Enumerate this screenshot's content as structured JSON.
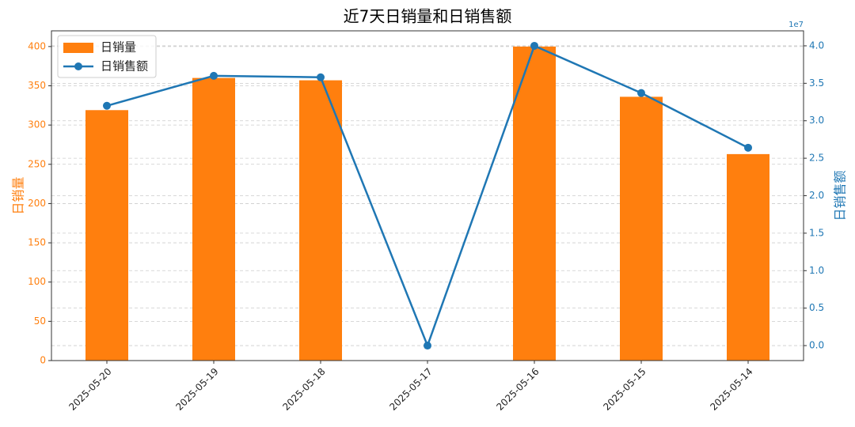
{
  "chart_data": {
    "type": "bar",
    "title": "近7天日销量和日销售额",
    "categories": [
      "2025-05-20",
      "2025-05-19",
      "2025-05-18",
      "2025-05-17",
      "2025-05-16",
      "2025-05-15",
      "2025-05-14"
    ],
    "series": [
      {
        "name": "日销量",
        "type": "bar",
        "color": "#ff7f0e",
        "values": [
          319,
          360,
          357,
          0,
          400,
          336,
          263
        ]
      },
      {
        "name": "日销售额",
        "type": "line",
        "axis": "y2",
        "color": "#1f77b4",
        "values": [
          32000000,
          36000000,
          35800000,
          0,
          40000000,
          33700000,
          26400000
        ]
      }
    ],
    "ylabel": "日销量",
    "y2label": "日销售额",
    "y2_offset_label": "1e7",
    "ylim": [
      0,
      420
    ],
    "yticks": [
      0,
      50,
      100,
      150,
      200,
      250,
      300,
      350,
      400
    ],
    "y2lim": [
      -2000000,
      42000000
    ],
    "y2ticks": [
      {
        "value": 0,
        "label": "0.0"
      },
      {
        "value": 5000000,
        "label": "0.5"
      },
      {
        "value": 10000000,
        "label": "1.0"
      },
      {
        "value": 15000000,
        "label": "1.5"
      },
      {
        "value": 20000000,
        "label": "2.0"
      },
      {
        "value": 25000000,
        "label": "2.5"
      },
      {
        "value": 30000000,
        "label": "3.0"
      },
      {
        "value": 35000000,
        "label": "3.5"
      },
      {
        "value": 40000000,
        "label": "4.0"
      }
    ],
    "grid": true,
    "legend": "upper left"
  }
}
